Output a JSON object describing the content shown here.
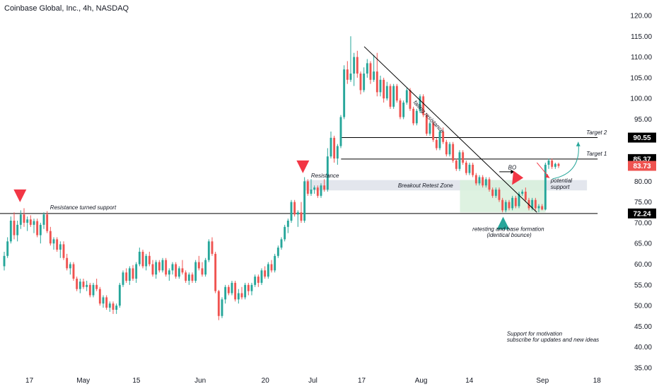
{
  "header": {
    "title": "Coinbase Global, Inc., 4h, NASDAQ"
  },
  "colors": {
    "up": "#26a69a",
    "down": "#ef5350",
    "line": "#000000",
    "zone": "#e0e3eb",
    "zone_green": "#d8f0dc",
    "badge_dark": "#000000",
    "badge_red": "#ef5350",
    "arrow_red": "#f23645",
    "arrow_green": "#26a69a"
  },
  "chart_data": {
    "type": "candlestick",
    "y_axis": {
      "min": 35,
      "max": 120,
      "ticks": [
        "120.00",
        "115.00",
        "110.00",
        "105.00",
        "100.00",
        "95.00",
        "90.00",
        "85.00",
        "80.00",
        "75.00",
        "70.00",
        "65.00",
        "60.00",
        "55.00",
        "50.00",
        "45.00",
        "40.00",
        "35.00"
      ]
    },
    "x_axis": {
      "ticks": [
        {
          "label": "17",
          "pos": 0.047
        },
        {
          "label": "May",
          "pos": 0.133
        },
        {
          "label": "15",
          "pos": 0.218
        },
        {
          "label": "Jun",
          "pos": 0.32
        },
        {
          "label": "20",
          "pos": 0.424
        },
        {
          "label": "Jul",
          "pos": 0.5
        },
        {
          "label": "17",
          "pos": 0.578
        },
        {
          "label": "Aug",
          "pos": 0.673
        },
        {
          "label": "14",
          "pos": 0.75
        },
        {
          "label": "Sep",
          "pos": 0.867
        },
        {
          "label": "18",
          "pos": 0.954
        }
      ]
    },
    "price_badges": [
      {
        "label": "90.55",
        "value": 90.55,
        "style": "dark"
      },
      {
        "label": "85.37",
        "value": 85.37,
        "style": "dark"
      },
      {
        "label": "83.73",
        "value": 83.73,
        "style": "red"
      },
      {
        "label": "72.24",
        "value": 72.24,
        "style": "dark"
      }
    ],
    "horizontal_lines": [
      {
        "value": 72.24,
        "from": 0.0,
        "to": 0.955
      },
      {
        "value": 85.37,
        "from": 0.545,
        "to": 0.955
      },
      {
        "value": 90.55,
        "from": 0.545,
        "to": 0.955
      }
    ],
    "trendline": {
      "x1": 0.582,
      "y1": 112.5,
      "x2": 0.858,
      "y2": 72.5
    },
    "zones": [
      {
        "label": "Breakout Retest Zone",
        "x1": 0.487,
        "x2": 0.938,
        "y1": 77.8,
        "y2": 80.3,
        "color": "zone"
      },
      {
        "label": "",
        "x1": 0.735,
        "x2": 0.872,
        "y1": 72.5,
        "y2": 80.3,
        "color": "zone_green"
      }
    ],
    "annotations": [
      {
        "text": "Resistance turned support",
        "x": 0.08,
        "y": 73.2,
        "angle": 0
      },
      {
        "text": "Resistance",
        "x": 0.497,
        "y": 80.9,
        "angle": 0
      },
      {
        "text": "Breakout Retest Zone",
        "x": 0.636,
        "y": 78.5,
        "angle": 0
      },
      {
        "text": "falling resistance",
        "x": 0.66,
        "y": 99.0,
        "angle": 47
      },
      {
        "text": "BO",
        "x": 0.812,
        "y": 82.9,
        "angle": 0
      },
      {
        "text": "Target 2",
        "x": 0.937,
        "y": 91.3,
        "angle": 0
      },
      {
        "text": "Target 1",
        "x": 0.937,
        "y": 86.2,
        "angle": 0
      },
      {
        "text": "potential",
        "x": 0.88,
        "y": 79.7,
        "angle": 0
      },
      {
        "text": "support",
        "x": 0.88,
        "y": 78.2,
        "angle": 0
      },
      {
        "text": "retesting and base formation",
        "x": 0.755,
        "y": 68.0,
        "angle": 0
      },
      {
        "text": "(identical bounce)",
        "x": 0.778,
        "y": 66.6,
        "angle": 0
      },
      {
        "text": "Support for motivation",
        "x": 0.81,
        "y": 42.8,
        "angle": 0
      },
      {
        "text": "subscribe for updates and new ideas",
        "x": 0.81,
        "y": 41.3,
        "angle": 0
      }
    ],
    "markers": [
      {
        "kind": "arrow-down",
        "x": 0.032,
        "y": 76.5,
        "color": "arrow_red"
      },
      {
        "kind": "arrow-down",
        "x": 0.484,
        "y": 83.5,
        "color": "arrow_red"
      },
      {
        "kind": "arrow-down-tilt",
        "x": 0.825,
        "y": 80.5,
        "color": "arrow_red"
      },
      {
        "kind": "arrow-up",
        "x": 0.804,
        "y": 69.9,
        "color": "arrow_green"
      }
    ],
    "candles": [
      [
        59.5,
        63.0,
        58.5,
        62.0
      ],
      [
        62.0,
        66.5,
        61.5,
        65.5
      ],
      [
        65.5,
        71.5,
        65.0,
        70.5
      ],
      [
        70.5,
        72.5,
        66.0,
        67.0
      ],
      [
        67.0,
        70.5,
        65.5,
        69.5
      ],
      [
        69.5,
        73.0,
        68.5,
        72.0
      ],
      [
        72.0,
        73.5,
        69.0,
        70.0
      ],
      [
        70.0,
        71.5,
        68.0,
        70.8
      ],
      [
        70.8,
        71.8,
        69.0,
        69.5
      ],
      [
        69.5,
        71.0,
        67.5,
        70.4
      ],
      [
        70.4,
        71.0,
        66.5,
        67.0
      ],
      [
        67.0,
        70.0,
        65.0,
        69.5
      ],
      [
        69.5,
        72.5,
        68.5,
        72.0
      ],
      [
        72.0,
        72.8,
        67.5,
        68.0
      ],
      [
        68.0,
        69.0,
        64.5,
        65.0
      ],
      [
        65.0,
        66.5,
        63.5,
        66.0
      ],
      [
        66.0,
        66.5,
        63.0,
        63.5
      ],
      [
        63.5,
        65.5,
        61.5,
        64.8
      ],
      [
        64.8,
        65.5,
        61.0,
        61.5
      ],
      [
        61.5,
        62.5,
        58.5,
        59.0
      ],
      [
        59.0,
        60.5,
        57.5,
        60.0
      ],
      [
        60.0,
        60.5,
        56.0,
        56.5
      ],
      [
        56.5,
        57.0,
        53.5,
        54.0
      ],
      [
        54.0,
        56.5,
        53.0,
        55.8
      ],
      [
        55.8,
        56.5,
        54.0,
        54.5
      ],
      [
        54.5,
        56.0,
        53.5,
        55.0
      ],
      [
        55.0,
        55.5,
        52.0,
        52.5
      ],
      [
        52.5,
        55.5,
        52.0,
        55.0
      ],
      [
        55.0,
        56.5,
        53.5,
        54.0
      ],
      [
        54.0,
        54.5,
        50.0,
        50.5
      ],
      [
        50.5,
        52.5,
        49.5,
        52.0
      ],
      [
        52.0,
        52.5,
        49.0,
        49.5
      ],
      [
        49.5,
        51.0,
        48.5,
        50.5
      ],
      [
        50.5,
        51.0,
        48.0,
        49.0
      ],
      [
        49.0,
        50.5,
        48.0,
        50.0
      ],
      [
        50.0,
        55.5,
        49.5,
        55.0
      ],
      [
        55.0,
        58.5,
        54.5,
        58.0
      ],
      [
        58.0,
        59.0,
        55.5,
        56.0
      ],
      [
        56.0,
        59.5,
        55.0,
        59.0
      ],
      [
        59.0,
        59.8,
        56.0,
        56.5
      ],
      [
        56.5,
        60.5,
        55.5,
        60.0
      ],
      [
        60.0,
        64.0,
        59.5,
        63.0
      ],
      [
        63.0,
        63.5,
        59.0,
        59.5
      ],
      [
        59.5,
        62.5,
        58.5,
        62.0
      ],
      [
        62.0,
        63.0,
        59.5,
        60.0
      ],
      [
        60.0,
        61.0,
        57.0,
        57.5
      ],
      [
        57.5,
        61.0,
        56.5,
        60.5
      ],
      [
        60.5,
        61.0,
        58.0,
        58.5
      ],
      [
        58.5,
        61.5,
        58.0,
        61.0
      ],
      [
        61.0,
        61.5,
        57.0,
        57.5
      ],
      [
        57.5,
        59.0,
        56.0,
        58.5
      ],
      [
        58.5,
        60.5,
        57.5,
        60.0
      ],
      [
        60.0,
        60.5,
        56.5,
        57.0
      ],
      [
        57.0,
        59.5,
        56.5,
        59.0
      ],
      [
        59.0,
        61.0,
        57.5,
        58.0
      ],
      [
        58.0,
        58.5,
        55.5,
        56.0
      ],
      [
        56.0,
        58.0,
        55.0,
        57.5
      ],
      [
        57.5,
        58.0,
        55.5,
        56.0
      ],
      [
        56.0,
        61.0,
        55.5,
        60.5
      ],
      [
        60.5,
        62.0,
        58.5,
        59.0
      ],
      [
        59.0,
        60.5,
        57.0,
        57.5
      ],
      [
        57.5,
        61.5,
        57.0,
        61.0
      ],
      [
        61.0,
        66.0,
        60.5,
        65.5
      ],
      [
        65.5,
        66.5,
        62.0,
        62.5
      ],
      [
        62.5,
        63.0,
        53.0,
        53.5
      ],
      [
        53.5,
        53.8,
        46.5,
        47.5
      ],
      [
        47.5,
        52.0,
        47.0,
        51.5
      ],
      [
        51.5,
        55.0,
        50.5,
        54.5
      ],
      [
        54.5,
        55.0,
        52.5,
        53.0
      ],
      [
        53.0,
        56.0,
        52.5,
        55.5
      ],
      [
        55.5,
        56.0,
        51.0,
        51.5
      ],
      [
        51.5,
        54.0,
        50.5,
        53.0
      ],
      [
        53.0,
        54.5,
        51.5,
        52.0
      ],
      [
        52.0,
        55.5,
        51.5,
        55.0
      ],
      [
        55.0,
        55.5,
        52.5,
        53.5
      ],
      [
        53.5,
        55.5,
        52.5,
        55.0
      ],
      [
        55.0,
        57.5,
        54.5,
        57.0
      ],
      [
        57.0,
        57.5,
        54.5,
        55.5
      ],
      [
        55.5,
        59.0,
        55.0,
        58.5
      ],
      [
        58.5,
        59.5,
        56.5,
        57.0
      ],
      [
        57.0,
        60.5,
        56.5,
        60.0
      ],
      [
        60.0,
        61.0,
        58.0,
        58.5
      ],
      [
        58.5,
        62.5,
        58.0,
        62.0
      ],
      [
        62.0,
        64.5,
        61.5,
        64.0
      ],
      [
        64.0,
        66.5,
        63.5,
        66.0
      ],
      [
        66.0,
        69.5,
        65.5,
        69.0
      ],
      [
        69.0,
        71.0,
        67.5,
        70.5
      ],
      [
        70.5,
        75.5,
        70.0,
        75.0
      ],
      [
        75.0,
        75.5,
        71.5,
        72.0
      ],
      [
        72.0,
        73.0,
        69.0,
        72.5
      ],
      [
        72.5,
        75.0,
        70.0,
        70.5
      ],
      [
        70.5,
        81.0,
        70.0,
        80.0
      ],
      [
        80.0,
        80.5,
        76.5,
        77.0
      ],
      [
        77.0,
        80.5,
        76.5,
        78.0
      ],
      [
        78.0,
        79.0,
        77.0,
        78.5
      ],
      [
        78.5,
        79.0,
        76.0,
        76.5
      ],
      [
        76.5,
        79.5,
        76.0,
        79.0
      ],
      [
        79.0,
        80.5,
        77.5,
        78.0
      ],
      [
        78.0,
        88.0,
        77.5,
        86.0
      ],
      [
        86.0,
        92.0,
        85.5,
        90.5
      ],
      [
        90.5,
        91.0,
        84.5,
        85.5
      ],
      [
        85.5,
        89.0,
        84.0,
        88.5
      ],
      [
        88.5,
        96.0,
        88.0,
        95.5
      ],
      [
        95.5,
        108.0,
        95.0,
        107.0
      ],
      [
        107.0,
        109.0,
        103.5,
        104.5
      ],
      [
        104.5,
        115.0,
        104.0,
        106.0
      ],
      [
        106.0,
        111.0,
        103.0,
        110.0
      ],
      [
        110.0,
        111.5,
        105.0,
        106.0
      ],
      [
        106.0,
        106.5,
        101.0,
        102.0
      ],
      [
        102.0,
        107.5,
        101.5,
        106.0
      ],
      [
        106.0,
        109.5,
        105.0,
        108.5
      ],
      [
        108.5,
        109.0,
        103.5,
        104.5
      ],
      [
        104.5,
        110.5,
        104.0,
        106.5
      ],
      [
        106.5,
        111.0,
        100.5,
        101.5
      ],
      [
        101.5,
        105.5,
        100.5,
        104.5
      ],
      [
        104.5,
        105.0,
        99.0,
        100.0
      ],
      [
        100.0,
        104.0,
        99.5,
        103.0
      ],
      [
        103.0,
        103.5,
        97.5,
        98.0
      ],
      [
        98.0,
        103.5,
        97.5,
        103.0
      ],
      [
        103.0,
        103.5,
        99.0,
        99.5
      ],
      [
        99.5,
        100.0,
        95.0,
        95.5
      ],
      [
        95.5,
        99.5,
        95.0,
        99.0
      ],
      [
        99.0,
        102.5,
        98.5,
        102.0
      ],
      [
        102.0,
        102.5,
        97.0,
        97.5
      ],
      [
        97.5,
        98.0,
        93.5,
        94.0
      ],
      [
        94.0,
        97.5,
        93.5,
        97.0
      ],
      [
        97.0,
        101.0,
        96.5,
        100.5
      ],
      [
        100.5,
        101.0,
        95.5,
        96.0
      ],
      [
        96.0,
        96.5,
        91.0,
        91.5
      ],
      [
        91.5,
        94.5,
        91.0,
        94.0
      ],
      [
        94.0,
        94.5,
        89.5,
        90.0
      ],
      [
        90.0,
        90.5,
        87.5,
        88.0
      ],
      [
        88.0,
        92.5,
        87.5,
        92.0
      ],
      [
        92.0,
        93.0,
        89.0,
        89.5
      ],
      [
        89.5,
        90.0,
        86.0,
        86.5
      ],
      [
        86.5,
        89.5,
        86.0,
        89.0
      ],
      [
        89.0,
        89.5,
        84.5,
        85.0
      ],
      [
        85.0,
        85.5,
        82.5,
        83.0
      ],
      [
        83.0,
        87.5,
        82.5,
        87.0
      ],
      [
        87.0,
        87.5,
        84.0,
        84.5
      ],
      [
        84.5,
        85.0,
        81.5,
        82.0
      ],
      [
        82.0,
        84.5,
        81.5,
        84.0
      ],
      [
        84.0,
        84.5,
        81.0,
        81.5
      ],
      [
        81.5,
        82.0,
        79.0,
        79.5
      ],
      [
        79.5,
        81.5,
        79.0,
        81.0
      ],
      [
        81.0,
        81.5,
        78.5,
        79.0
      ],
      [
        79.0,
        81.0,
        78.5,
        80.5
      ],
      [
        80.5,
        81.0,
        77.5,
        78.0
      ],
      [
        78.0,
        78.5,
        76.0,
        76.5
      ],
      [
        76.5,
        78.5,
        76.0,
        78.0
      ],
      [
        78.0,
        78.5,
        75.0,
        75.5
      ],
      [
        75.5,
        76.0,
        72.5,
        73.0
      ],
      [
        73.0,
        75.5,
        72.5,
        75.0
      ],
      [
        75.0,
        75.5,
        73.0,
        73.5
      ],
      [
        73.5,
        76.5,
        73.0,
        76.0
      ],
      [
        76.0,
        76.5,
        73.5,
        74.0
      ],
      [
        74.0,
        77.5,
        73.5,
        77.0
      ],
      [
        77.0,
        78.0,
        76.5,
        77.5
      ],
      [
        77.5,
        78.5,
        75.0,
        75.5
      ],
      [
        75.5,
        76.0,
        73.0,
        73.5
      ],
      [
        73.5,
        76.0,
        73.0,
        75.5
      ],
      [
        75.5,
        76.0,
        73.0,
        73.5
      ],
      [
        73.5,
        74.5,
        72.5,
        74.0
      ],
      [
        74.0,
        74.5,
        73.0,
        73.2
      ],
      [
        73.2,
        84.5,
        73.0,
        84.0
      ],
      [
        84.0,
        85.5,
        83.0,
        85.0
      ],
      [
        85.0,
        85.5,
        83.0,
        83.5
      ],
      [
        83.5,
        84.5,
        83.0,
        84.2
      ],
      [
        84.2,
        84.5,
        83.2,
        83.7
      ]
    ]
  }
}
